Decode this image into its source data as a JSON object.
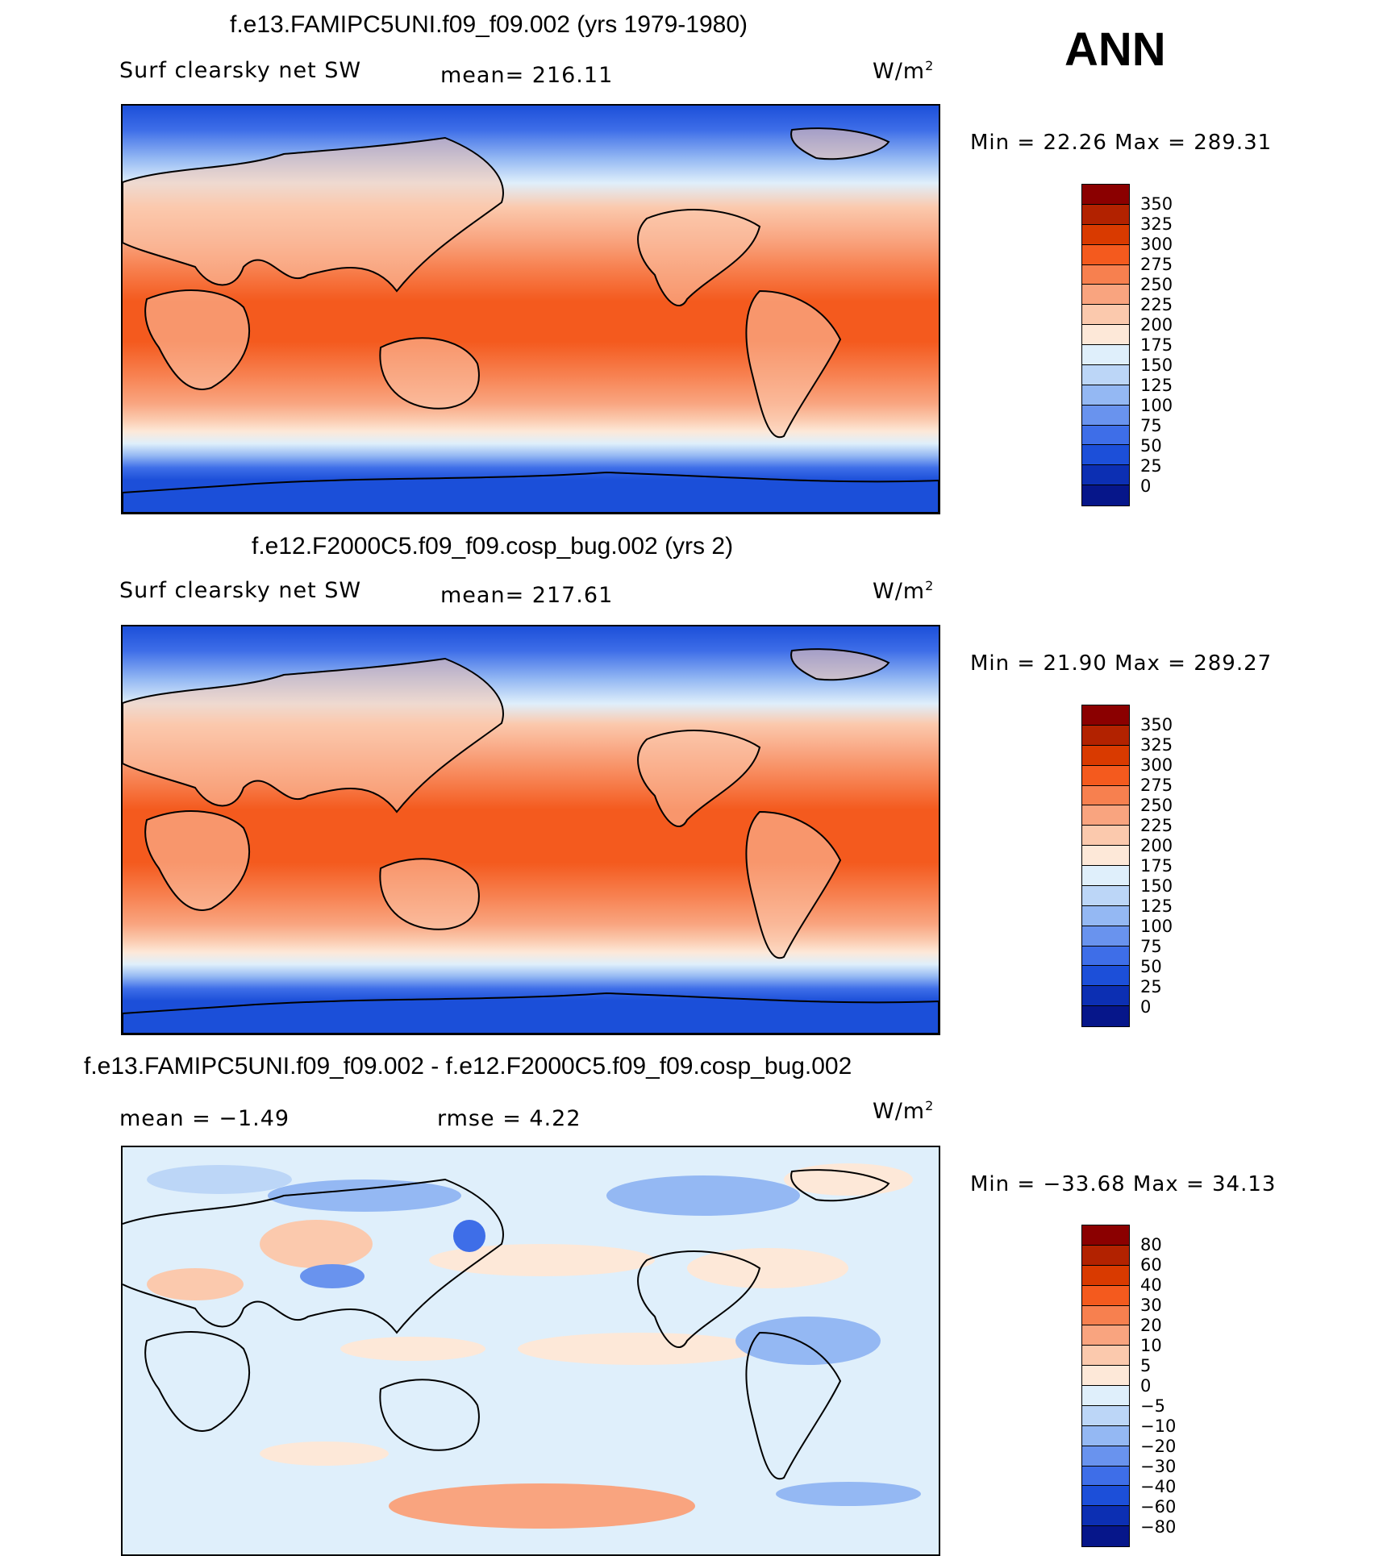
{
  "season": "ANN",
  "panels": [
    {
      "title": "f.e13.FAMIPC5UNI.f09_f09.002 (yrs 1979-1980)",
      "left_label": "Surf clearsky net SW",
      "mid_label": "mean= 216.11",
      "units": "W/m",
      "units_exp": "2",
      "minmax": "Min =   22.26  Max  =  289.31",
      "colorbar_labels": [
        "350",
        "325",
        "300",
        "275",
        "250",
        "225",
        "200",
        "175",
        "150",
        "125",
        "100",
        "75",
        "50",
        "25",
        "0"
      ],
      "colors": [
        "#8b0000",
        "#b22200",
        "#d93a00",
        "#f45a1e",
        "#f7804f",
        "#f9a47f",
        "#fbc9ad",
        "#fde8d8",
        "#dfeffb",
        "#bcd6f7",
        "#94b8f3",
        "#6993ee",
        "#3e6ee8",
        "#1c4fd9",
        "#0c2fb3",
        "#06168a"
      ]
    },
    {
      "title": "f.e12.F2000C5.f09_f09.cosp_bug.002 (yrs 2)",
      "left_label": "Surf clearsky net SW",
      "mid_label": "mean= 217.61",
      "units": "W/m",
      "units_exp": "2",
      "minmax": "Min =   21.90  Max  =  289.27",
      "colorbar_labels": [
        "350",
        "325",
        "300",
        "275",
        "250",
        "225",
        "200",
        "175",
        "150",
        "125",
        "100",
        "75",
        "50",
        "25",
        "0"
      ],
      "colors": [
        "#8b0000",
        "#b22200",
        "#d93a00",
        "#f45a1e",
        "#f7804f",
        "#f9a47f",
        "#fbc9ad",
        "#fde8d8",
        "#dfeffb",
        "#bcd6f7",
        "#94b8f3",
        "#6993ee",
        "#3e6ee8",
        "#1c4fd9",
        "#0c2fb3",
        "#06168a"
      ]
    },
    {
      "title": "f.e13.FAMIPC5UNI.f09_f09.002 - f.e12.F2000C5.f09_f09.cosp_bug.002",
      "left_label": "mean =   −1.49",
      "mid_label": "rmse =     4.22",
      "units": "W/m",
      "units_exp": "2",
      "minmax": "Min = −33.68  Max  =   34.13",
      "colorbar_labels": [
        "80",
        "60",
        "40",
        "30",
        "20",
        "10",
        "5",
        "0",
        "−5",
        "−10",
        "−20",
        "−30",
        "−40",
        "−60",
        "−80"
      ],
      "colors": [
        "#8b0000",
        "#b22200",
        "#d93a00",
        "#f45a1e",
        "#f7804f",
        "#f9a47f",
        "#fbc9ad",
        "#fde8d8",
        "#dfeffb",
        "#bcd6f7",
        "#94b8f3",
        "#6993ee",
        "#3e6ee8",
        "#1c4fd9",
        "#0c2fb3",
        "#06168a"
      ]
    }
  ]
}
